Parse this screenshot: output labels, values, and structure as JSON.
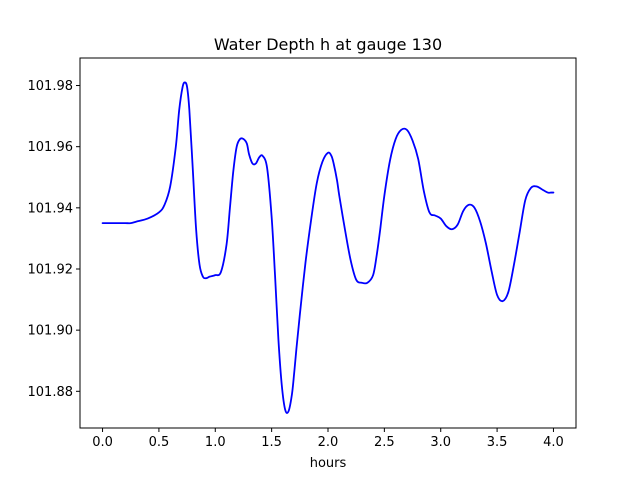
{
  "chart_data": {
    "type": "line",
    "title": "Water Depth h at gauge 130",
    "xlabel": "hours",
    "ylabel": "",
    "xlim": [
      -0.2,
      4.2
    ],
    "ylim": [
      101.868,
      101.989
    ],
    "x_ticks": [
      0.0,
      0.5,
      1.0,
      1.5,
      2.0,
      2.5,
      3.0,
      3.5,
      4.0
    ],
    "x_tick_labels": [
      "0.0",
      "0.5",
      "1.0",
      "1.5",
      "2.0",
      "2.5",
      "3.0",
      "3.5",
      "4.0"
    ],
    "y_ticks": [
      101.88,
      101.9,
      101.92,
      101.94,
      101.96,
      101.98
    ],
    "y_tick_labels": [
      "101.88",
      "101.90",
      "101.92",
      "101.94",
      "101.96",
      "101.98"
    ],
    "grid": false,
    "legend": "none",
    "series": [
      {
        "color": "#0000ff",
        "x": [
          0.0,
          0.1,
          0.2,
          0.25,
          0.3,
          0.4,
          0.5,
          0.55,
          0.6,
          0.65,
          0.68,
          0.71,
          0.73,
          0.75,
          0.77,
          0.8,
          0.83,
          0.86,
          0.89,
          0.92,
          0.95,
          1.0,
          1.05,
          1.1,
          1.13,
          1.16,
          1.19,
          1.22,
          1.25,
          1.28,
          1.3,
          1.33,
          1.36,
          1.39,
          1.42,
          1.46,
          1.5,
          1.53,
          1.56,
          1.59,
          1.62,
          1.65,
          1.68,
          1.7,
          1.72,
          1.75,
          1.8,
          1.85,
          1.9,
          1.95,
          2.0,
          2.03,
          2.05,
          2.08,
          2.1,
          2.15,
          2.2,
          2.25,
          2.3,
          2.35,
          2.4,
          2.43,
          2.46,
          2.5,
          2.55,
          2.6,
          2.65,
          2.7,
          2.75,
          2.8,
          2.85,
          2.9,
          2.95,
          3.0,
          3.05,
          3.1,
          3.15,
          3.2,
          3.25,
          3.3,
          3.35,
          3.4,
          3.45,
          3.5,
          3.55,
          3.6,
          3.65,
          3.7,
          3.75,
          3.8,
          3.85,
          3.9,
          3.95,
          3.98,
          4.0
        ],
        "y": [
          101.935,
          101.935,
          101.935,
          101.935,
          101.9355,
          101.9365,
          101.9385,
          101.941,
          101.947,
          101.96,
          101.972,
          101.9795,
          101.981,
          101.9795,
          101.972,
          101.953,
          101.933,
          101.9215,
          101.9175,
          101.917,
          101.9175,
          101.918,
          101.919,
          101.928,
          101.94,
          101.952,
          101.96,
          101.9625,
          101.9625,
          101.961,
          101.9575,
          101.9545,
          101.9545,
          101.9565,
          101.957,
          101.953,
          101.937,
          101.918,
          101.897,
          101.882,
          101.874,
          101.8735,
          101.879,
          101.886,
          101.894,
          101.905,
          101.922,
          101.936,
          101.948,
          101.955,
          101.958,
          101.957,
          101.9545,
          101.949,
          101.944,
          101.933,
          101.923,
          101.9165,
          101.9155,
          101.9155,
          101.918,
          101.924,
          101.932,
          101.944,
          101.9555,
          101.9625,
          101.9655,
          101.9655,
          101.962,
          101.956,
          101.9455,
          101.9385,
          101.9375,
          101.9365,
          101.934,
          101.933,
          101.9345,
          101.939,
          101.941,
          101.94,
          101.9355,
          101.9285,
          101.9195,
          101.9115,
          101.9095,
          101.9125,
          101.9215,
          101.932,
          101.9425,
          101.9465,
          101.947,
          101.946,
          101.945,
          101.945,
          101.945
        ]
      }
    ]
  }
}
